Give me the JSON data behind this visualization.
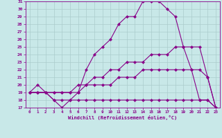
{
  "background_color": "#c8e8e8",
  "grid_color": "#aacccc",
  "line_color": "#880088",
  "marker": "D",
  "marker_size": 2.2,
  "xlabel": "Windchill (Refroidissement éolien,°C)",
  "xlim": [
    -0.5,
    23.5
  ],
  "ylim": [
    17,
    31
  ],
  "xticks": [
    0,
    1,
    2,
    3,
    4,
    5,
    6,
    7,
    8,
    9,
    10,
    11,
    12,
    13,
    14,
    15,
    16,
    17,
    18,
    19,
    20,
    21,
    22,
    23
  ],
  "yticks": [
    17,
    18,
    19,
    20,
    21,
    22,
    23,
    24,
    25,
    26,
    27,
    28,
    29,
    30,
    31
  ],
  "series": [
    {
      "x": [
        0,
        1,
        2,
        3,
        4,
        5,
        6,
        7,
        8,
        9,
        10,
        11,
        12,
        13,
        14,
        15,
        16,
        17,
        18,
        19,
        20,
        21,
        22,
        23
      ],
      "y": [
        19,
        20,
        19,
        18,
        17,
        18,
        19,
        22,
        24,
        25,
        26,
        28,
        29,
        29,
        31,
        31,
        31,
        30,
        29,
        25,
        22,
        18,
        18,
        17
      ]
    },
    {
      "x": [
        0,
        1,
        2,
        3,
        4,
        5,
        6,
        7,
        8,
        9,
        10,
        11,
        12,
        13,
        14,
        15,
        16,
        17,
        18,
        19,
        20,
        21,
        22,
        23
      ],
      "y": [
        19,
        19,
        19,
        18,
        18,
        18,
        18,
        18,
        18,
        18,
        18,
        18,
        18,
        18,
        18,
        18,
        18,
        18,
        18,
        18,
        18,
        18,
        18,
        17
      ]
    },
    {
      "x": [
        0,
        1,
        2,
        3,
        4,
        5,
        6,
        7,
        8,
        9,
        10,
        11,
        12,
        13,
        14,
        15,
        16,
        17,
        18,
        19,
        20,
        21,
        22,
        23
      ],
      "y": [
        19,
        19,
        19,
        19,
        19,
        19,
        19,
        20,
        20,
        20,
        20,
        21,
        21,
        21,
        22,
        22,
        22,
        22,
        22,
        22,
        22,
        22,
        21,
        17
      ]
    },
    {
      "x": [
        0,
        1,
        2,
        3,
        4,
        5,
        6,
        7,
        8,
        9,
        10,
        11,
        12,
        13,
        14,
        15,
        16,
        17,
        18,
        19,
        20,
        21,
        22,
        23
      ],
      "y": [
        19,
        19,
        19,
        19,
        19,
        19,
        20,
        20,
        21,
        21,
        22,
        22,
        23,
        23,
        23,
        24,
        24,
        24,
        25,
        25,
        25,
        25,
        21,
        17
      ]
    }
  ]
}
